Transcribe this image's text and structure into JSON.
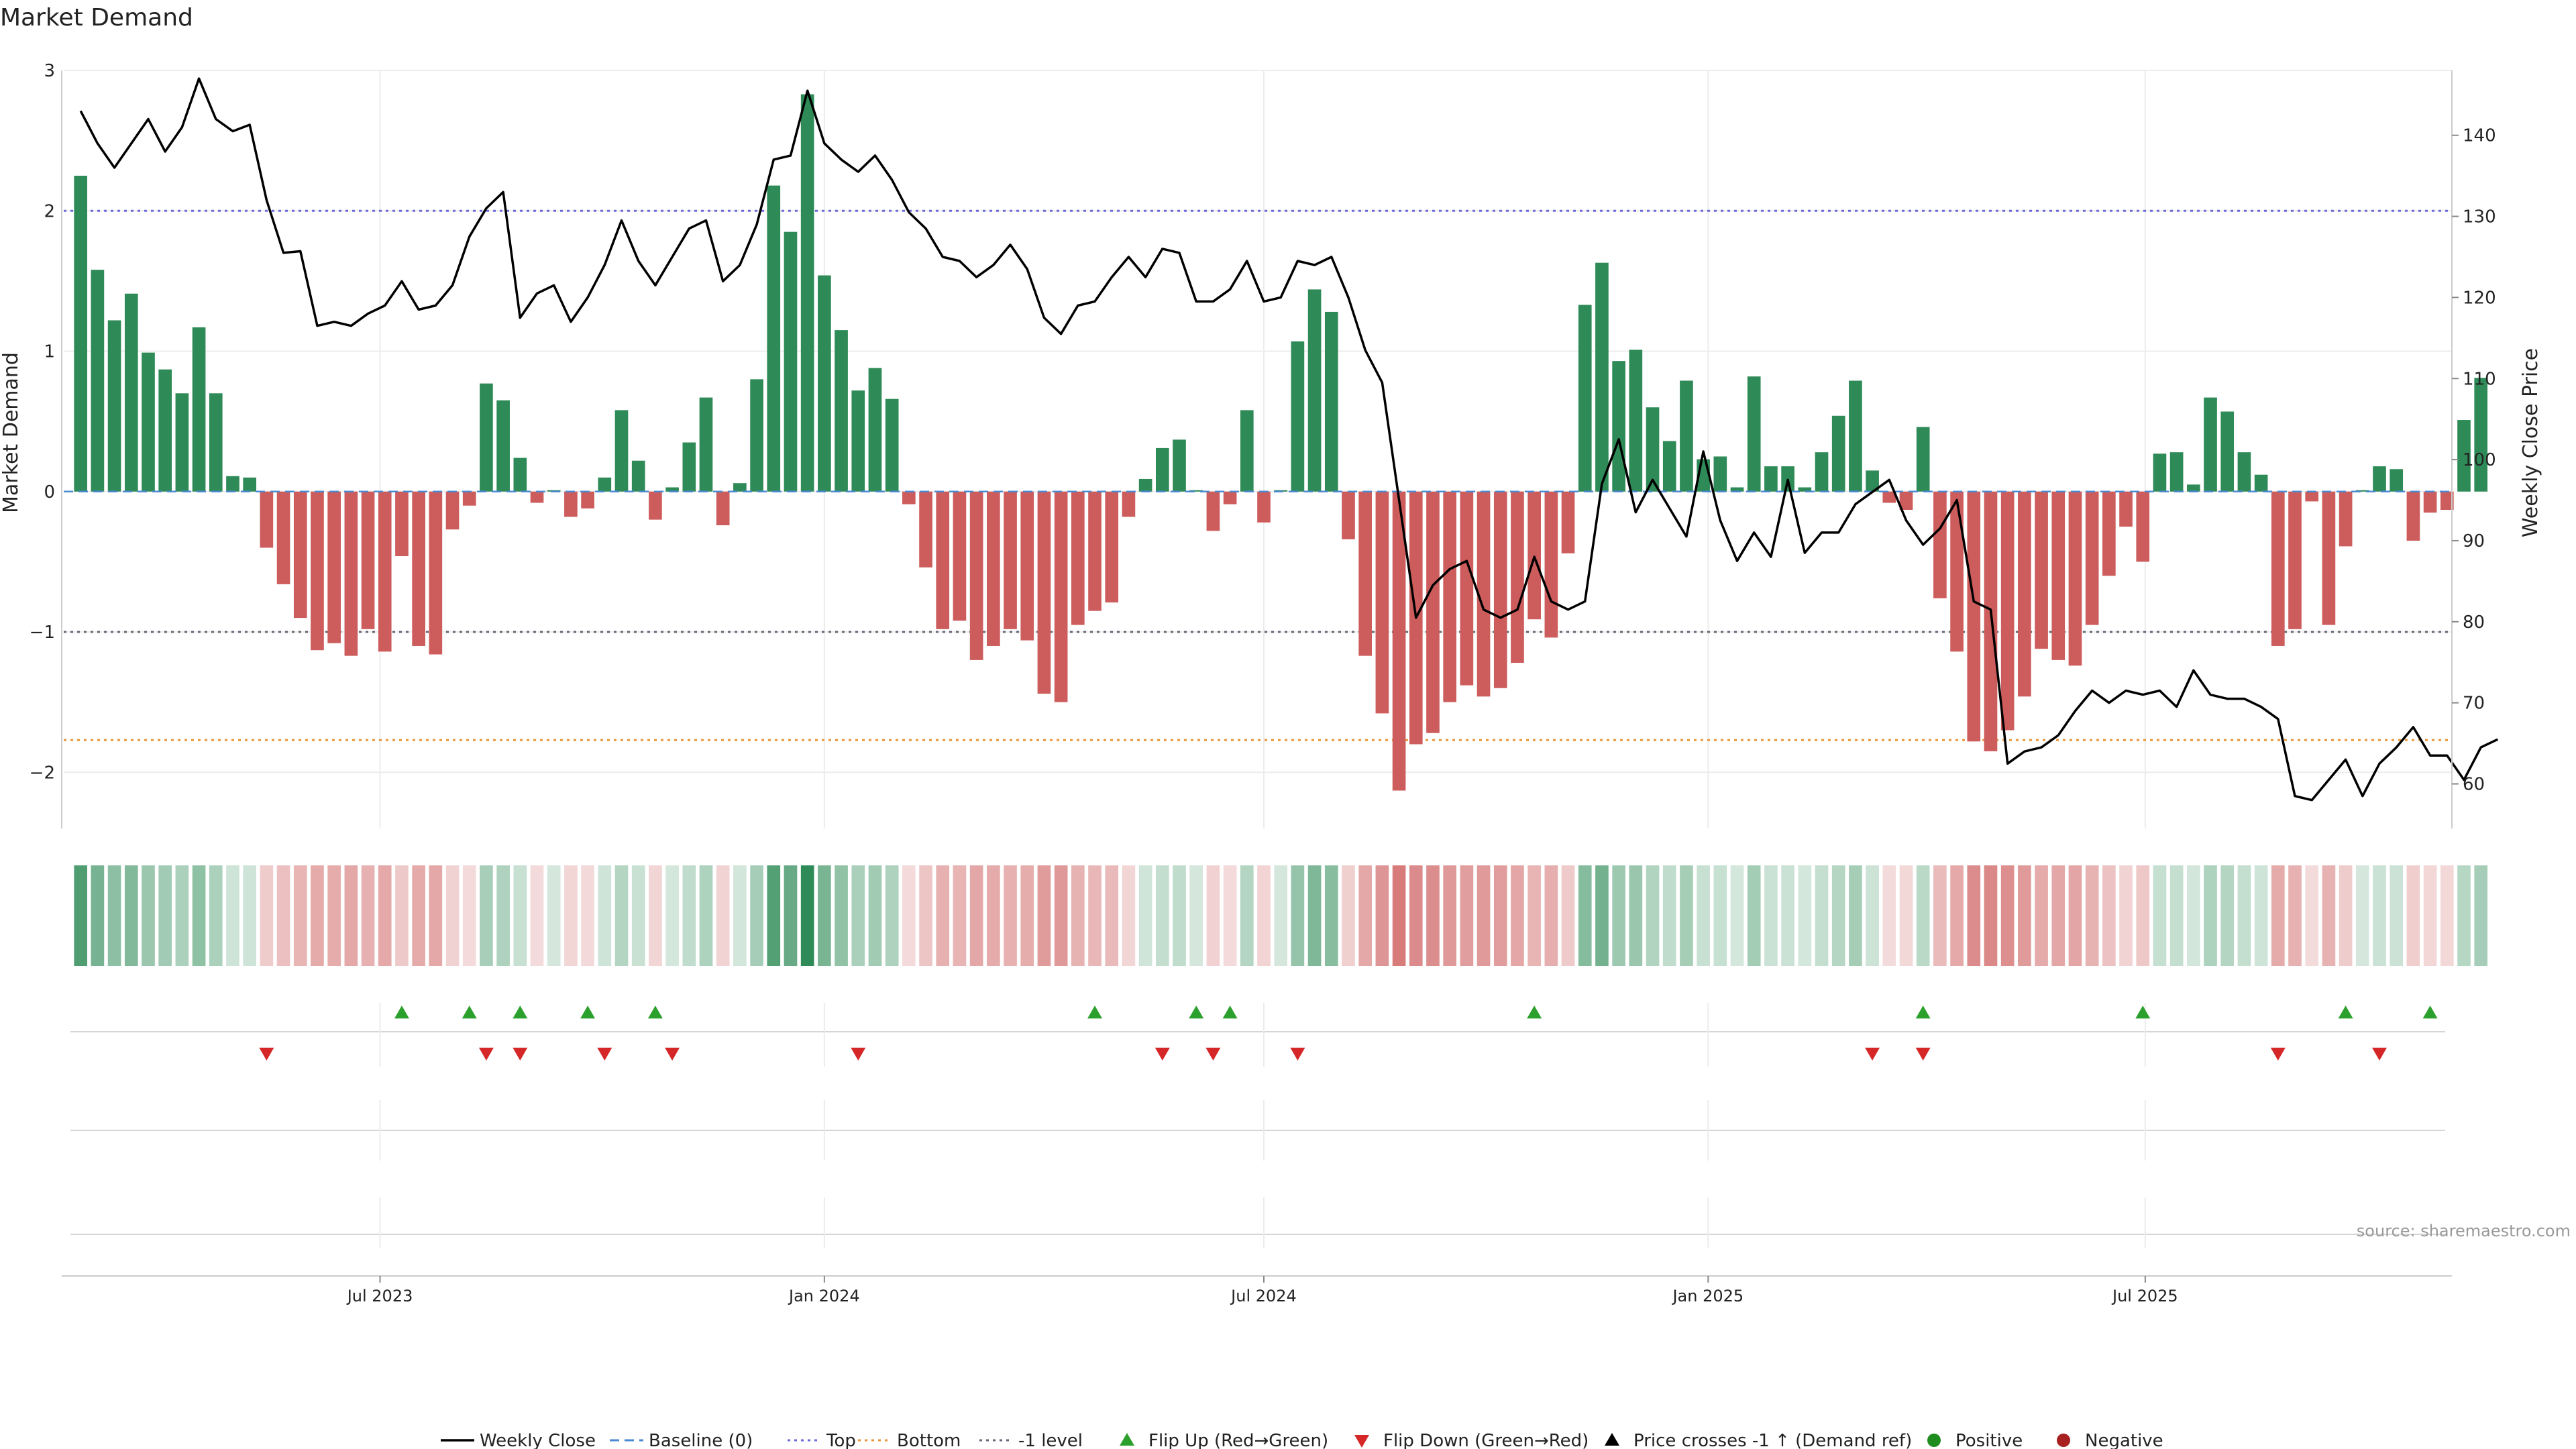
{
  "colors": {
    "positive": "#2e8b57",
    "negative": "#cd5c5c",
    "price": "#000000",
    "top": "#6a6ad8",
    "bottom": "#e8953a",
    "minus1": "#666677",
    "baseline": "#4a8ad0",
    "flip_up": "#2ca02c",
    "flip_down": "#d62728",
    "cross": "#000000",
    "legend_pos": "#1e8c1e",
    "legend_neg": "#a82020",
    "grid": "#ececec",
    "axis_text": "#222222",
    "source_text": "#999999"
  },
  "chart_data": {
    "type": "bar",
    "title": "Market Demand",
    "ylabel": "Market Demand",
    "y2label": "Weekly Close Price",
    "ylim": [
      -2.4,
      3.0
    ],
    "y2lim": [
      54.5,
      148.0
    ],
    "yticks": [
      3,
      2,
      1,
      0,
      -1,
      -2
    ],
    "ytick_labels": [
      "3",
      "2",
      "1",
      "0",
      "−1",
      "−2"
    ],
    "y2ticks": [
      140,
      130,
      120,
      110,
      100,
      90,
      80,
      70,
      60
    ],
    "levels": {
      "top": 2.0,
      "bottom": -1.77,
      "minus_one": -1.0,
      "baseline": 0
    },
    "x_axis": {
      "start": "2023-02-20",
      "end": "2025-11-05",
      "ticks": [
        {
          "date": "2023-07-01",
          "label": "Jul 2023"
        },
        {
          "date": "2024-01-01",
          "label": "Jan 2024"
        },
        {
          "date": "2024-07-01",
          "label": "Jul 2024"
        },
        {
          "date": "2025-01-01",
          "label": "Jan 2025"
        },
        {
          "date": "2025-07-01",
          "label": "Jul 2025"
        }
      ]
    },
    "weekly_start": "2023-02-27",
    "demand": [
      2.25,
      1.58,
      1.22,
      1.41,
      0.99,
      0.87,
      0.7,
      1.17,
      0.7,
      0.11,
      0.1,
      -0.4,
      -0.66,
      -0.9,
      -1.13,
      -1.08,
      -1.17,
      -0.98,
      -1.14,
      -0.46,
      -1.1,
      -1.16,
      -0.27,
      -0.1,
      0.77,
      0.65,
      0.24,
      -0.08,
      0.01,
      -0.18,
      -0.12,
      0.1,
      0.58,
      0.22,
      -0.2,
      0.03,
      0.35,
      0.67,
      -0.24,
      0.06,
      0.8,
      2.18,
      1.85,
      2.83,
      1.54,
      1.15,
      0.72,
      0.88,
      0.66,
      -0.09,
      -0.54,
      -0.98,
      -0.92,
      -1.2,
      -1.1,
      -0.98,
      -1.06,
      -1.44,
      -1.5,
      -0.95,
      -0.85,
      -0.79,
      -0.18,
      0.09,
      0.31,
      0.37,
      0.01,
      -0.28,
      -0.09,
      0.58,
      -0.22,
      0.01,
      1.07,
      1.44,
      1.28,
      -0.34,
      -1.17,
      -1.58,
      -2.13,
      -1.8,
      -1.72,
      -1.5,
      -1.38,
      -1.46,
      -1.4,
      -1.22,
      -0.91,
      -1.04,
      -0.44,
      1.33,
      1.63,
      0.93,
      1.01,
      0.6,
      0.36,
      0.79,
      0.23,
      0.25,
      0.03,
      0.82,
      0.18,
      0.18,
      0.03,
      0.28,
      0.54,
      0.79,
      0.15,
      -0.08,
      -0.13,
      0.46,
      -0.76,
      -1.14,
      -1.78,
      -1.85,
      -1.7,
      -1.46,
      -1.12,
      -1.2,
      -1.24,
      -0.95,
      -0.6,
      -0.25,
      -0.5,
      0.27,
      0.28,
      0.05,
      0.67,
      0.57,
      0.28,
      0.12,
      -1.1,
      -0.98,
      -0.07,
      -0.95,
      -0.39,
      0.01,
      0.18,
      0.16,
      -0.35,
      -0.15,
      -0.13,
      0.51,
      0.81
    ],
    "price": [
      143,
      139,
      136,
      139,
      142,
      138,
      141,
      147,
      142,
      140.5,
      141.3,
      132,
      125.5,
      125.7,
      116.5,
      117,
      116.5,
      118,
      119,
      122,
      118.5,
      119,
      121.5,
      127.5,
      131,
      133,
      117.5,
      120.5,
      121.5,
      117,
      120,
      124,
      129.5,
      124.5,
      121.5,
      125,
      128.5,
      129.5,
      122,
      124,
      129,
      137,
      137.5,
      145.5,
      139,
      137,
      135.5,
      137.5,
      134.5,
      130.5,
      128.5,
      125,
      124.5,
      122.5,
      124,
      126.5,
      123.5,
      117.5,
      115.5,
      119,
      119.5,
      122.5,
      125,
      122.5,
      126,
      125.5,
      119.5,
      119.5,
      121,
      124.5,
      119.5,
      120,
      124.5,
      124,
      125,
      120,
      113.5,
      109.5,
      95,
      80.5,
      84.5,
      86.5,
      87.5,
      81.5,
      80.5,
      81.5,
      88,
      82.5,
      81.5,
      82.5,
      97,
      102.5,
      93.5,
      97.5,
      94,
      90.5,
      101,
      92.5,
      87.5,
      91,
      88,
      97.5,
      88.5,
      91,
      91,
      94.5,
      96,
      97.5,
      92.5,
      89.5,
      91.5,
      95,
      82.5,
      81.5,
      62.5,
      64,
      64.5,
      66,
      69,
      71.5,
      70,
      71.5,
      71,
      71.5,
      69.5,
      74,
      71,
      70.5,
      70.5,
      69.5,
      68,
      58.5,
      58,
      60.5,
      63,
      58.5,
      62.5,
      64.5,
      67,
      63.5,
      63.5,
      60.5,
      64.5,
      65.5
    ],
    "flip_up_dates": [
      "2023-07-10",
      "2023-08-07",
      "2023-08-28",
      "2023-09-25",
      "2023-10-23",
      "2024-04-22",
      "2024-06-03",
      "2024-06-17",
      "2024-10-21",
      "2025-03-31",
      "2025-06-30",
      "2025-09-22",
      "2025-10-27"
    ],
    "flip_down_dates": [
      "2023-05-15",
      "2023-08-14",
      "2023-08-28",
      "2023-10-02",
      "2023-10-30",
      "2024-01-15",
      "2024-05-20",
      "2024-06-10",
      "2024-07-15",
      "2025-03-10",
      "2025-03-31",
      "2025-08-25",
      "2025-10-06"
    ],
    "source": "source: sharemaestro.com",
    "legend": [
      {
        "key": "weekly_close",
        "label": "Weekly Close"
      },
      {
        "key": "baseline",
        "label": "Baseline (0)"
      },
      {
        "key": "top",
        "label": "Top"
      },
      {
        "key": "bottom",
        "label": "Bottom"
      },
      {
        "key": "minus1",
        "label": "-1 level"
      },
      {
        "key": "flip_up",
        "label": "Flip Up (Red→Green)"
      },
      {
        "key": "flip_down",
        "label": "Flip Down (Green→Red)"
      },
      {
        "key": "cross",
        "label": "Price crosses -1 ↑ (Demand ref)"
      },
      {
        "key": "positive",
        "label": "Positive"
      },
      {
        "key": "negative",
        "label": "Negative"
      }
    ]
  }
}
